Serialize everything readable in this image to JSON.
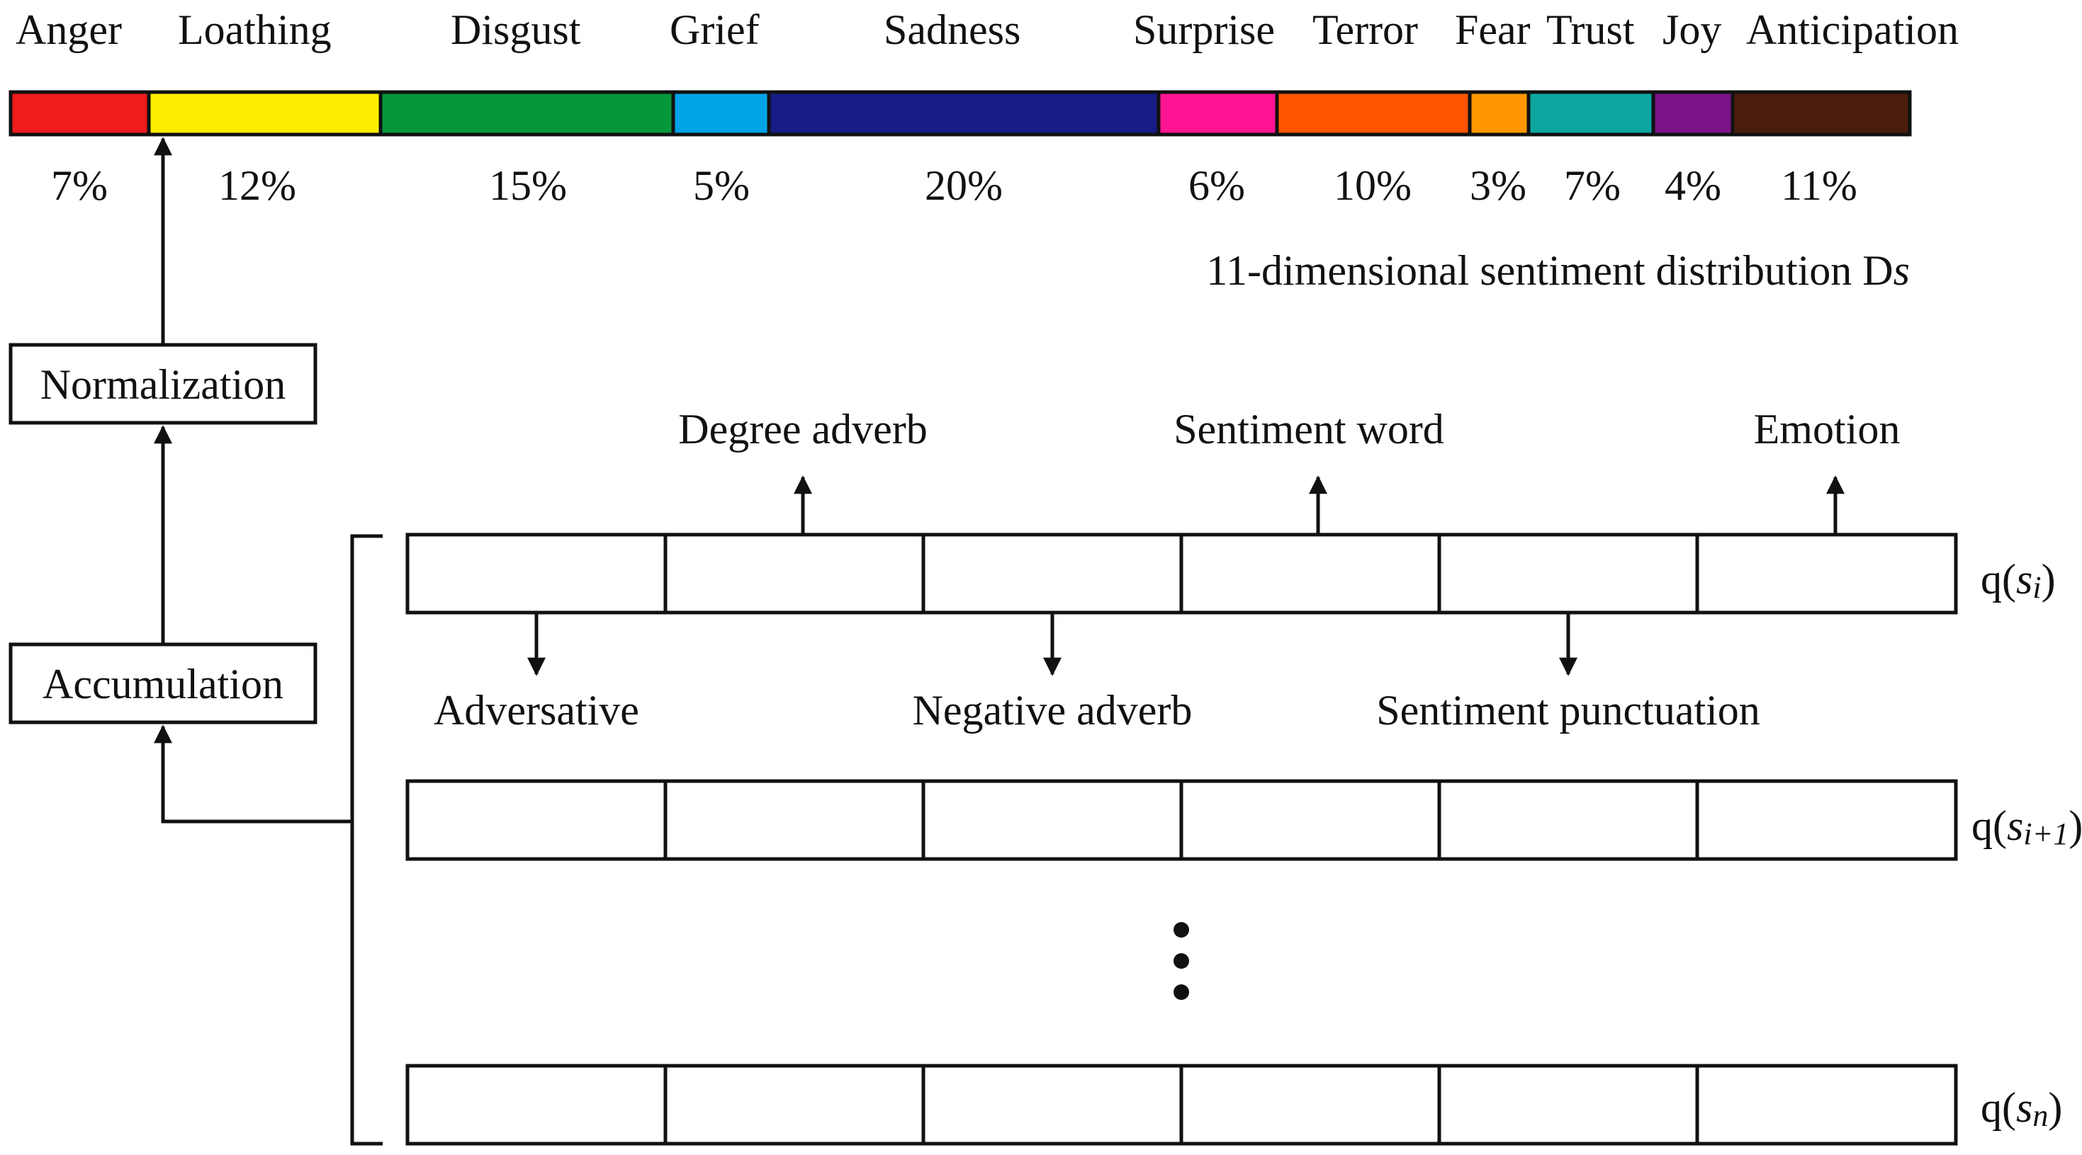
{
  "distribution": {
    "title": "11-dimensional sentiment distribution D",
    "title_italic": "s",
    "segments": [
      {
        "label": "Anger",
        "percent": "7%",
        "color": "#ee1c1c"
      },
      {
        "label": "Loathing",
        "percent": "12%",
        "color": "#ffee00"
      },
      {
        "label": "Disgust",
        "percent": "15%",
        "color": "#05963a"
      },
      {
        "label": "Grief",
        "percent": "5%",
        "color": "#00a3e6"
      },
      {
        "label": "Sadness",
        "percent": "20%",
        "color": "#151c84"
      },
      {
        "label": "Surprise",
        "percent": "6%",
        "color": "#ff1493"
      },
      {
        "label": "Terror",
        "percent": "10%",
        "color": "#ff5500"
      },
      {
        "label": "Fear",
        "percent": "3%",
        "color": "#ff9800"
      },
      {
        "label": "Trust",
        "percent": "7%",
        "color": "#0ca6a0"
      },
      {
        "label": "Joy",
        "percent": "4%",
        "color": "#7a1487"
      },
      {
        "label": "Anticipation",
        "percent": "11%",
        "color": "#4a1c0c"
      }
    ]
  },
  "process": {
    "normalization": "Normalization",
    "accumulation": "Accumulation"
  },
  "features": {
    "degree_adverb": "Degree adverb",
    "sentiment_word": "Sentiment word",
    "emotion": "Emotion",
    "adversative": "Adversative",
    "negative_adverb": "Negative adverb",
    "sentiment_punctuation": "Sentiment punctuation"
  },
  "rows": [
    {
      "prefix": "q(",
      "var": "s",
      "sub": "i",
      "suffix": ")"
    },
    {
      "prefix": "q(",
      "var": "s",
      "sub": "i+1",
      "suffix": ")"
    },
    {
      "prefix": "q(",
      "var": "s",
      "sub": "n",
      "suffix": ")"
    }
  ],
  "ellipsis": "⋮"
}
